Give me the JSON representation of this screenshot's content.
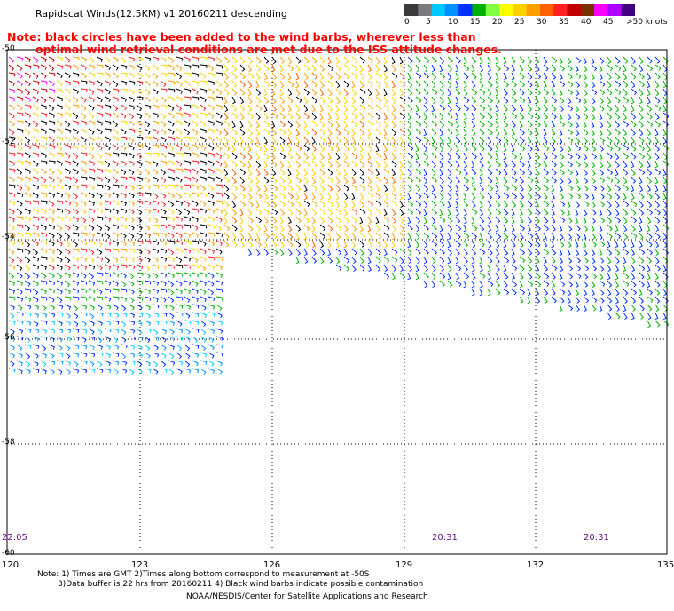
{
  "header": {
    "title": "Rapidscat Winds(12.5KM) v1 20160211 descending",
    "note_line1": "Note: black circles have been added to the wind barbs, wherever less than",
    "note_line2": "optimal wind retrieval conditions are met due to the ISS attitude changes."
  },
  "colorbar": {
    "ticks": [
      "0",
      "5",
      "10",
      "15",
      "20",
      "25",
      "30",
      "35",
      "40",
      "45",
      ">50 knots"
    ],
    "colors": [
      "#3a3a3a",
      "#7a7a7a",
      "#00c8ff",
      "#0090ff",
      "#0030ff",
      "#00b000",
      "#80ff40",
      "#ffff00",
      "#ffd000",
      "#ffa000",
      "#ff6000",
      "#ff2020",
      "#c00000",
      "#7a3000",
      "#ff00ff",
      "#b000ff",
      "#400080"
    ]
  },
  "axes": {
    "y_labels": [
      "-50",
      "-52",
      "-54",
      "-56",
      "-58",
      "-60"
    ],
    "x_labels": [
      "120",
      "123",
      "126",
      "129",
      "132",
      "135"
    ]
  },
  "times": [
    "22:05",
    "20:31",
    "20:31"
  ],
  "footer": {
    "line1": "Note: 1) Times are GMT 2)Times along bottom correspond to measurement at -50S",
    "line2": "3)Data buffer is 22 hrs from 20160211 4) Black wind barbs indicate possible contamination",
    "line3": "NOAA/NESDIS/Center for Satellite Applications and Research"
  }
}
